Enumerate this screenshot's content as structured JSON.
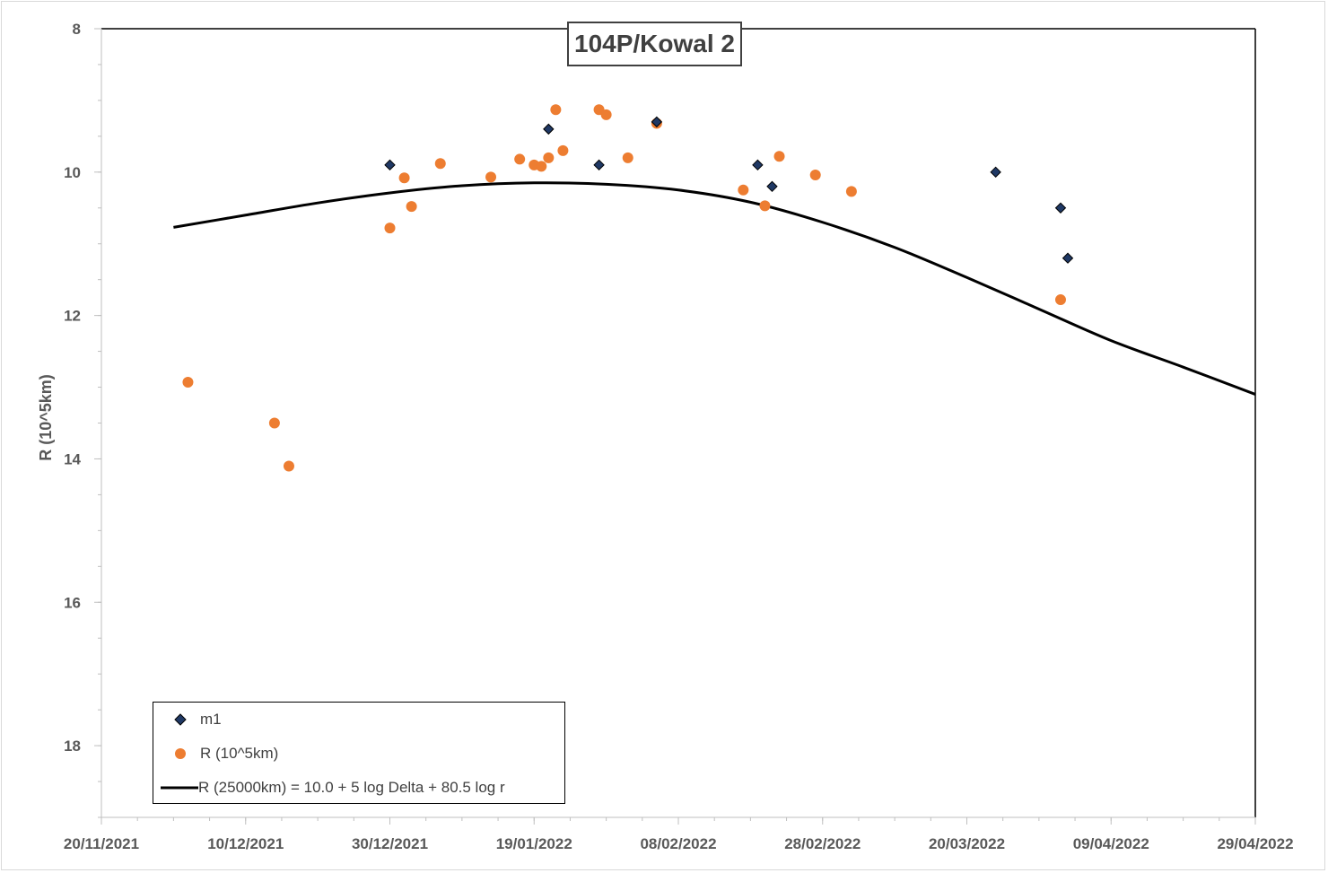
{
  "chart_data": {
    "type": "scatter",
    "title": "104P/Kowal 2",
    "ylabel": "R (10^5km)",
    "xlabel": "",
    "y_axis_reversed": true,
    "ylim": [
      8,
      19
    ],
    "y_ticks": [
      8,
      10,
      12,
      14,
      16,
      18
    ],
    "xlim": [
      "2021-11-20",
      "2022-04-29"
    ],
    "x_tick_labels": [
      "20/11/2021",
      "10/12/2021",
      "30/12/2021",
      "19/01/2022",
      "08/02/2022",
      "28/02/2022",
      "20/03/2022",
      "09/04/2022",
      "29/04/2022"
    ],
    "x_tick_dates": [
      "2021-11-20",
      "2021-12-10",
      "2021-12-30",
      "2022-01-19",
      "2022-02-08",
      "2022-02-28",
      "2022-03-20",
      "2022-04-09",
      "2022-04-29"
    ],
    "grid": false,
    "legend_position": "bottom-left",
    "series": [
      {
        "name": "m1",
        "marker": "diamond",
        "color": "#1f3864",
        "points": [
          [
            "2021-12-30",
            9.9
          ],
          [
            "2022-01-21",
            9.4
          ],
          [
            "2022-01-28",
            9.9
          ],
          [
            "2022-02-05",
            9.3
          ],
          [
            "2022-02-19",
            9.9
          ],
          [
            "2022-02-21",
            10.2
          ],
          [
            "2022-03-24",
            10.0
          ],
          [
            "2022-04-02",
            10.5
          ],
          [
            "2022-04-03",
            11.2
          ]
        ]
      },
      {
        "name": "R (10^5km)",
        "marker": "circle",
        "color": "#ed7d31",
        "points": [
          [
            "2021-12-02",
            12.93
          ],
          [
            "2021-12-14",
            13.5
          ],
          [
            "2021-12-16",
            14.1
          ],
          [
            "2021-12-30",
            10.78
          ],
          [
            "2022-01-01",
            10.08
          ],
          [
            "2022-01-02",
            10.48
          ],
          [
            "2022-01-06",
            9.88
          ],
          [
            "2022-01-13",
            10.07
          ],
          [
            "2022-01-17",
            9.82
          ],
          [
            "2022-01-19",
            9.9
          ],
          [
            "2022-01-20",
            9.92
          ],
          [
            "2022-01-21",
            9.8
          ],
          [
            "2022-01-22",
            9.13
          ],
          [
            "2022-01-23",
            9.7
          ],
          [
            "2022-01-28",
            9.13
          ],
          [
            "2022-01-29",
            9.2
          ],
          [
            "2022-02-01",
            9.8
          ],
          [
            "2022-02-05",
            9.32
          ],
          [
            "2022-02-17",
            10.25
          ],
          [
            "2022-02-20",
            10.47
          ],
          [
            "2022-02-22",
            9.78
          ],
          [
            "2022-02-27",
            10.04
          ],
          [
            "2022-03-04",
            10.27
          ],
          [
            "2022-04-02",
            11.78
          ]
        ]
      },
      {
        "name": "R (25000km) = 10.0 + 5 log Delta + 80.5 log r",
        "marker": "line",
        "color": "#000000",
        "points": [
          [
            "2021-11-30",
            10.77
          ],
          [
            "2021-12-10",
            10.6
          ],
          [
            "2021-12-20",
            10.43
          ],
          [
            "2021-12-30",
            10.29
          ],
          [
            "2022-01-09",
            10.19
          ],
          [
            "2022-01-19",
            10.15
          ],
          [
            "2022-01-29",
            10.17
          ],
          [
            "2022-02-08",
            10.25
          ],
          [
            "2022-02-18",
            10.42
          ],
          [
            "2022-02-28",
            10.7
          ],
          [
            "2022-03-10",
            11.05
          ],
          [
            "2022-03-20",
            11.47
          ],
          [
            "2022-03-30",
            11.91
          ],
          [
            "2022-04-09",
            12.35
          ],
          [
            "2022-04-19",
            12.72
          ],
          [
            "2022-04-29",
            13.1
          ]
        ]
      }
    ]
  },
  "legend": {
    "items": [
      {
        "label": "m1"
      },
      {
        "label": "R (10^5km)"
      },
      {
        "label": "R (25000km) = 10.0 + 5 log Delta + 80.5 log r"
      }
    ]
  }
}
